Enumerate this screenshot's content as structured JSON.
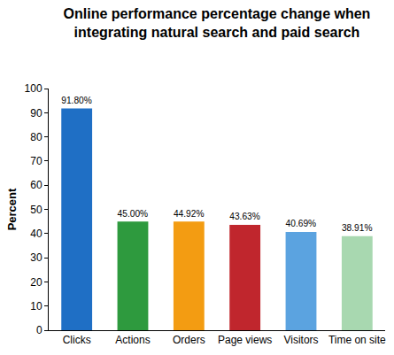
{
  "chart_data": {
    "type": "bar",
    "title": "Online performance percentage change when integrating natural search and paid search",
    "y_label": "Percent",
    "categories": [
      "Clicks",
      "Actions",
      "Orders",
      "Page views",
      "Visitors",
      "Time on site"
    ],
    "values": [
      91.8,
      45.0,
      44.92,
      43.63,
      40.69,
      38.91
    ],
    "value_labels": [
      "91.80%",
      "45.00%",
      "44.92%",
      "43.63%",
      "40.69%",
      "38.91%"
    ],
    "colors": [
      "#1f6fc5",
      "#2e9a3e",
      "#f39c12",
      "#c0262d",
      "#5ba3e0",
      "#a8d8b0"
    ],
    "ylim": [
      0,
      100
    ],
    "yticks": [
      0,
      10,
      20,
      30,
      40,
      50,
      60,
      70,
      80,
      90,
      100
    ],
    "grid": false,
    "data_labels": true
  }
}
